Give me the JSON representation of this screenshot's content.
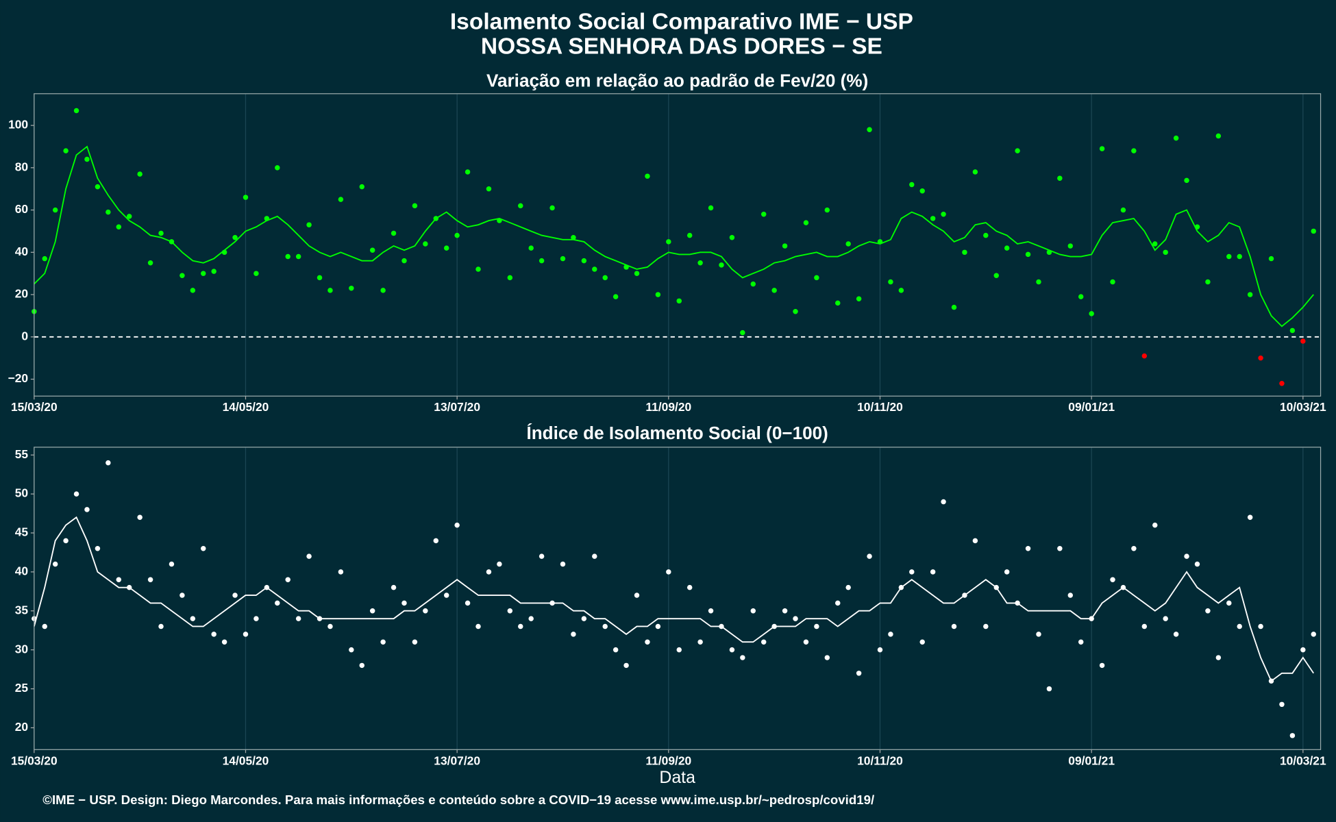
{
  "header": {
    "title": "Isolamento Social Comparativo IME − USP",
    "subtitle": "NOSSA SENHORA DAS DORES − SE"
  },
  "footer": "©IME − USP. Design: Diego Marcondes. Para mais informações e conteúdo sobre a COVID−19 acesse www.ime.usp.br/~pedrosp/covid19/",
  "chart_data": [
    {
      "type": "scatter",
      "title": "Variação em relação ao padrão de Fev/20 (%)",
      "x": [
        "15/03/20",
        "18/03/20",
        "21/03/20",
        "24/03/20",
        "27/03/20",
        "30/03/20",
        "02/04/20",
        "05/04/20",
        "08/04/20",
        "11/04/20",
        "14/04/20",
        "17/04/20",
        "20/04/20",
        "23/04/20",
        "26/04/20",
        "29/04/20",
        "02/05/20",
        "05/05/20",
        "08/05/20",
        "11/05/20",
        "14/05/20",
        "17/05/20",
        "20/05/20",
        "23/05/20",
        "26/05/20",
        "29/05/20",
        "01/06/20",
        "04/06/20",
        "07/06/20",
        "10/06/20",
        "13/06/20",
        "16/06/20",
        "19/06/20",
        "22/06/20",
        "25/06/20",
        "28/06/20",
        "01/07/20",
        "04/07/20",
        "07/07/20",
        "10/07/20",
        "13/07/20",
        "16/07/20",
        "19/07/20",
        "22/07/20",
        "25/07/20",
        "28/07/20",
        "31/07/20",
        "03/08/20",
        "06/08/20",
        "09/08/20",
        "12/08/20",
        "15/08/20",
        "18/08/20",
        "21/08/20",
        "24/08/20",
        "27/08/20",
        "30/08/20",
        "02/09/20",
        "05/09/20",
        "08/09/20",
        "11/09/20",
        "14/09/20",
        "17/09/20",
        "20/09/20",
        "23/09/20",
        "26/09/20",
        "29/09/20",
        "02/10/20",
        "05/10/20",
        "08/10/20",
        "11/10/20",
        "14/10/20",
        "17/10/20",
        "20/10/20",
        "23/10/20",
        "26/10/20",
        "29/10/20",
        "01/11/20",
        "04/11/20",
        "07/11/20",
        "10/11/20",
        "13/11/20",
        "16/11/20",
        "19/11/20",
        "22/11/20",
        "25/11/20",
        "28/11/20",
        "01/12/20",
        "04/12/20",
        "07/12/20",
        "10/12/20",
        "13/12/20",
        "16/12/20",
        "19/12/20",
        "22/12/20",
        "25/12/20",
        "28/12/20",
        "31/12/20",
        "03/01/21",
        "06/01/21",
        "09/01/21",
        "12/01/21",
        "15/01/21",
        "18/01/21",
        "21/01/21",
        "24/01/21",
        "27/01/21",
        "30/01/21",
        "02/02/21",
        "05/02/21",
        "08/02/21",
        "11/02/21",
        "14/02/21",
        "17/02/21",
        "20/02/21",
        "23/02/21",
        "26/02/21",
        "01/03/21",
        "04/03/21",
        "07/03/21",
        "10/03/21",
        "13/03/21"
      ],
      "series": [
        {
          "type": "points",
          "color": "#00ff00",
          "negative_color": "#ff0000",
          "values": [
            12,
            37,
            60,
            88,
            107,
            84,
            71,
            59,
            52,
            57,
            77,
            35,
            49,
            45,
            29,
            22,
            30,
            31,
            40,
            47,
            66,
            30,
            56,
            80,
            38,
            38,
            53,
            28,
            22,
            65,
            23,
            71,
            41,
            22,
            49,
            36,
            62,
            44,
            56,
            42,
            48,
            78,
            32,
            70,
            55,
            28,
            62,
            42,
            36,
            61,
            37,
            47,
            36,
            32,
            28,
            19,
            33,
            30,
            76,
            20,
            45,
            17,
            48,
            35,
            61,
            34,
            47,
            2,
            25,
            58,
            22,
            43,
            12,
            54,
            28,
            60,
            16,
            44,
            18,
            98,
            45,
            26,
            22,
            72,
            69,
            56,
            58,
            14,
            40,
            78,
            48,
            29,
            42,
            88,
            39,
            26,
            40,
            75,
            43,
            19,
            11,
            89,
            26,
            60,
            88,
            -9,
            44,
            40,
            94,
            74,
            52,
            26,
            95,
            38,
            38,
            20,
            -10,
            37,
            -22,
            3,
            -2,
            50
          ]
        },
        {
          "type": "line",
          "color": "#00ff00",
          "values": [
            25,
            30,
            45,
            70,
            86,
            90,
            75,
            67,
            60,
            55,
            52,
            48,
            47,
            45,
            40,
            36,
            35,
            37,
            41,
            45,
            50,
            52,
            55,
            57,
            53,
            48,
            43,
            40,
            38,
            40,
            38,
            36,
            36,
            40,
            43,
            41,
            43,
            50,
            56,
            59,
            55,
            52,
            53,
            55,
            56,
            54,
            52,
            50,
            48,
            47,
            46,
            46,
            45,
            41,
            38,
            36,
            34,
            32,
            33,
            37,
            40,
            39,
            39,
            40,
            40,
            38,
            32,
            28,
            30,
            32,
            35,
            36,
            38,
            39,
            40,
            38,
            38,
            40,
            43,
            45,
            44,
            46,
            56,
            59,
            57,
            53,
            50,
            45,
            47,
            53,
            54,
            50,
            48,
            44,
            45,
            43,
            41,
            39,
            38,
            38,
            39,
            48,
            54,
            55,
            56,
            50,
            41,
            46,
            58,
            60,
            50,
            45,
            48,
            54,
            52,
            38,
            20,
            10,
            5,
            9,
            14,
            20
          ]
        }
      ],
      "xlim": [
        "15/03/20",
        "15/03/21"
      ],
      "xticks": [
        "15/03/20",
        "14/05/20",
        "13/07/20",
        "11/09/20",
        "10/11/20",
        "09/01/21",
        "10/03/21"
      ],
      "ylim": [
        -28,
        115
      ],
      "yticks": [
        {
          "value": -20,
          "label": "−20"
        },
        0,
        20,
        40,
        60,
        80,
        100
      ],
      "hline": 0,
      "grid": "x"
    },
    {
      "type": "scatter",
      "title": "Índice de Isolamento Social (0−100)",
      "x_label": "Data",
      "x": [
        "15/03/20",
        "18/03/20",
        "21/03/20",
        "24/03/20",
        "27/03/20",
        "30/03/20",
        "02/04/20",
        "05/04/20",
        "08/04/20",
        "11/04/20",
        "14/04/20",
        "17/04/20",
        "20/04/20",
        "23/04/20",
        "26/04/20",
        "29/04/20",
        "02/05/20",
        "05/05/20",
        "08/05/20",
        "11/05/20",
        "14/05/20",
        "17/05/20",
        "20/05/20",
        "23/05/20",
        "26/05/20",
        "29/05/20",
        "01/06/20",
        "04/06/20",
        "07/06/20",
        "10/06/20",
        "13/06/20",
        "16/06/20",
        "19/06/20",
        "22/06/20",
        "25/06/20",
        "28/06/20",
        "01/07/20",
        "04/07/20",
        "07/07/20",
        "10/07/20",
        "13/07/20",
        "16/07/20",
        "19/07/20",
        "22/07/20",
        "25/07/20",
        "28/07/20",
        "31/07/20",
        "03/08/20",
        "06/08/20",
        "09/08/20",
        "12/08/20",
        "15/08/20",
        "18/08/20",
        "21/08/20",
        "24/08/20",
        "27/08/20",
        "30/08/20",
        "02/09/20",
        "05/09/20",
        "08/09/20",
        "11/09/20",
        "14/09/20",
        "17/09/20",
        "20/09/20",
        "23/09/20",
        "26/09/20",
        "29/09/20",
        "02/10/20",
        "05/10/20",
        "08/10/20",
        "11/10/20",
        "14/10/20",
        "17/10/20",
        "20/10/20",
        "23/10/20",
        "26/10/20",
        "29/10/20",
        "01/11/20",
        "04/11/20",
        "07/11/20",
        "10/11/20",
        "13/11/20",
        "16/11/20",
        "19/11/20",
        "22/11/20",
        "25/11/20",
        "28/11/20",
        "01/12/20",
        "04/12/20",
        "07/12/20",
        "10/12/20",
        "13/12/20",
        "16/12/20",
        "19/12/20",
        "22/12/20",
        "25/12/20",
        "28/12/20",
        "31/12/20",
        "03/01/21",
        "06/01/21",
        "09/01/21",
        "12/01/21",
        "15/01/21",
        "18/01/21",
        "21/01/21",
        "24/01/21",
        "27/01/21",
        "30/01/21",
        "02/02/21",
        "05/02/21",
        "08/02/21",
        "11/02/21",
        "14/02/21",
        "17/02/21",
        "20/02/21",
        "23/02/21",
        "26/02/21",
        "01/03/21",
        "04/03/21",
        "07/03/21",
        "10/03/21",
        "13/03/21"
      ],
      "series": [
        {
          "type": "points",
          "color": "#ffffff",
          "values": [
            34,
            33,
            41,
            44,
            50,
            48,
            43,
            54,
            39,
            38,
            47,
            39,
            33,
            41,
            37,
            34,
            43,
            32,
            31,
            37,
            32,
            34,
            38,
            36,
            39,
            34,
            42,
            34,
            33,
            40,
            30,
            28,
            35,
            31,
            38,
            36,
            31,
            35,
            44,
            37,
            46,
            36,
            33,
            40,
            41,
            35,
            33,
            34,
            42,
            36,
            41,
            32,
            34,
            42,
            33,
            30,
            28,
            37,
            31,
            33,
            40,
            30,
            38,
            31,
            35,
            33,
            30,
            29,
            35,
            31,
            33,
            35,
            34,
            31,
            33,
            29,
            36,
            38,
            27,
            42,
            30,
            32,
            38,
            40,
            31,
            40,
            49,
            33,
            37,
            44,
            33,
            38,
            40,
            36,
            43,
            32,
            25,
            43,
            37,
            31,
            34,
            28,
            39,
            38,
            43,
            33,
            46,
            34,
            32,
            42,
            41,
            35,
            29,
            36,
            33,
            47,
            33,
            26,
            23,
            19,
            30,
            32
          ]
        },
        {
          "type": "line",
          "color": "#ffffff",
          "values": [
            33,
            38,
            44,
            46,
            47,
            44,
            40,
            39,
            38,
            38,
            37,
            36,
            36,
            35,
            34,
            33,
            33,
            34,
            35,
            36,
            37,
            37,
            38,
            37,
            36,
            35,
            35,
            34,
            34,
            34,
            34,
            34,
            34,
            34,
            34,
            35,
            35,
            36,
            37,
            38,
            39,
            38,
            37,
            37,
            37,
            37,
            36,
            36,
            36,
            36,
            36,
            35,
            35,
            34,
            34,
            33,
            32,
            33,
            33,
            34,
            34,
            34,
            34,
            34,
            33,
            33,
            32,
            31,
            31,
            32,
            33,
            33,
            33,
            34,
            34,
            34,
            33,
            34,
            35,
            35,
            36,
            36,
            38,
            39,
            38,
            37,
            36,
            36,
            37,
            38,
            39,
            38,
            36,
            36,
            35,
            35,
            35,
            35,
            35,
            34,
            34,
            36,
            37,
            38,
            37,
            36,
            35,
            36,
            38,
            40,
            38,
            37,
            36,
            37,
            38,
            33,
            29,
            26,
            27,
            27,
            29,
            27
          ]
        }
      ],
      "xlim": [
        "15/03/20",
        "15/03/21"
      ],
      "xticks": [
        "15/03/20",
        "14/05/20",
        "13/07/20",
        "11/09/20",
        "10/11/20",
        "09/01/21",
        "10/03/21"
      ],
      "ylim": [
        17.2,
        56
      ],
      "yticks": [
        20,
        25,
        30,
        35,
        40,
        45,
        50,
        55
      ],
      "grid": "x"
    }
  ]
}
